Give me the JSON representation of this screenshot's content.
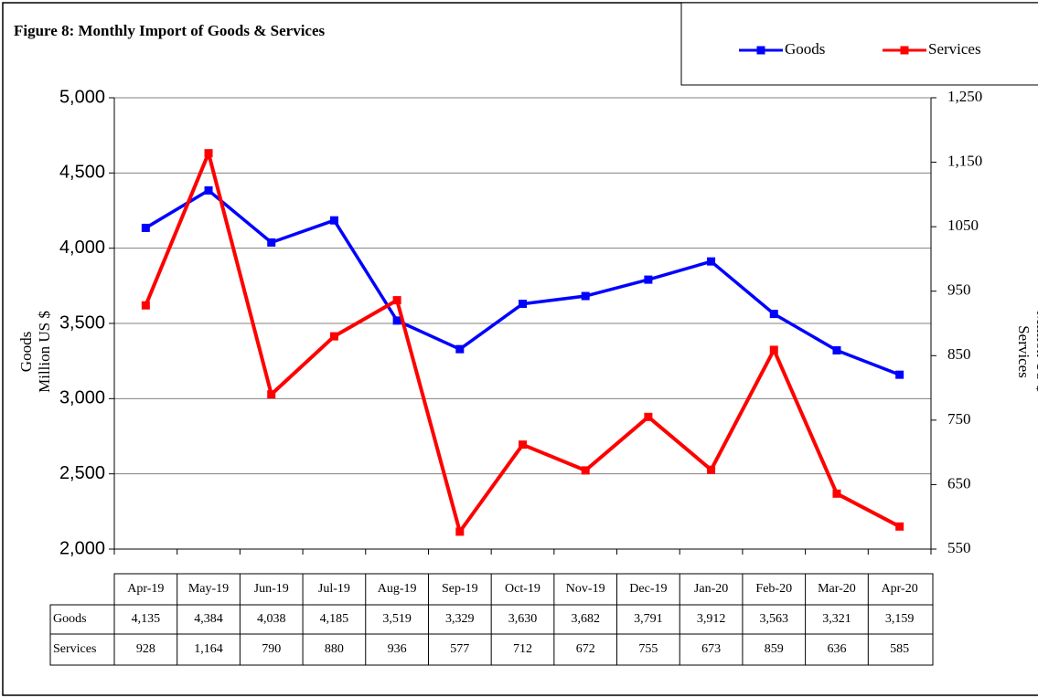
{
  "chart_data": {
    "type": "line",
    "title": "Figure 8: Monthly Import of Goods & Services",
    "ylabel": [
      "Goods",
      "Million US $"
    ],
    "y2label": [
      "Services",
      "Million US $"
    ],
    "categories": [
      "Apr-19",
      "May-19",
      "Jun-19",
      "Jul-19",
      "Aug-19",
      "Sep-19",
      "Oct-19",
      "Nov-19",
      "Dec-19",
      "Jan-20",
      "Feb-20",
      "Mar-20",
      "Apr-20"
    ],
    "series": [
      {
        "name": "Goods",
        "color": "#0000ff",
        "axis": "y",
        "values": [
          4135,
          4384,
          4038,
          4185,
          3519,
          3329,
          3630,
          3682,
          3791,
          3912,
          3563,
          3321,
          3159
        ],
        "value_labels": [
          "4,135",
          "4,384",
          "4,038",
          "4,185",
          "3,519",
          "3,329",
          "3,630",
          "3,682",
          "3,791",
          "3,912",
          "3,563",
          "3,321",
          "3,159"
        ]
      },
      {
        "name": "Services",
        "color": "#ff0000",
        "axis": "y2",
        "values": [
          928,
          1164,
          790,
          880,
          936,
          577,
          712,
          672,
          755,
          673,
          859,
          636,
          585
        ],
        "value_labels": [
          "928",
          "1,164",
          "790",
          "880",
          "936",
          "577",
          "712",
          "672",
          "755",
          "673",
          "859",
          "636",
          "585"
        ]
      }
    ],
    "ylim": [
      2000,
      5000
    ],
    "yticks": [
      {
        "value": 2000,
        "label": "2,000"
      },
      {
        "value": 2500,
        "label": "2,500"
      },
      {
        "value": 3000,
        "label": "3,000"
      },
      {
        "value": 3500,
        "label": "3,500"
      },
      {
        "value": 4000,
        "label": "4,000"
      },
      {
        "value": 4500,
        "label": "4,500"
      },
      {
        "value": 5000,
        "label": "5,000"
      }
    ],
    "y2lim": [
      550,
      1250
    ],
    "y2ticks": [
      550,
      650,
      750,
      850,
      950,
      1050,
      {
        "value": 1150,
        "label": "1,150"
      },
      {
        "value": 1250,
        "label": "1,250"
      }
    ],
    "grid": true,
    "legend": "top-right"
  }
}
